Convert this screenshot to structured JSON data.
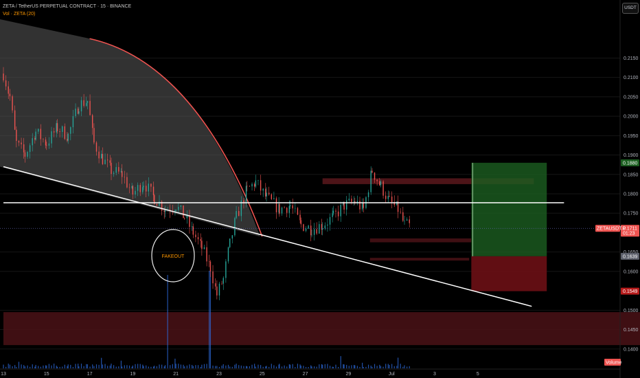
{
  "header": {
    "symbol_line": "ZETA / TetherUS PERPETUAL CONTRACT · 15 · BINANCE",
    "volume_line": "Vol · ZETA (20)"
  },
  "currency_button": "USDT",
  "annotation": "FAKEOUT",
  "colors": {
    "background": "#000000",
    "up_candle": "#26a69a",
    "down_candle": "#ef5350",
    "zone": "#4a1216",
    "target_zone": "#1b5e20",
    "stop_zone": "#6b0f15",
    "trend_line": "#ffffff",
    "arc": "#ef5350",
    "volume": "#2d6cdf"
  },
  "chart_data": {
    "type": "candlestick",
    "title": "ZETA / TetherUS PERPETUAL CONTRACT · 15 · BINANCE",
    "ylim": [
      0.135,
      0.225
    ],
    "y_ticks": [
      0.215,
      0.21,
      0.205,
      0.2,
      0.195,
      0.19,
      0.185,
      0.18,
      0.175,
      0.165,
      0.16,
      0.15,
      0.145,
      0.14
    ],
    "x_ticks": [
      "13",
      "15",
      "17",
      "19",
      "21",
      "23",
      "25",
      "27",
      "29",
      "Jul",
      "3",
      "5"
    ],
    "x_tick_days": [
      13,
      15,
      17,
      19,
      21,
      23,
      25,
      27,
      29,
      31,
      33,
      35
    ],
    "xlim_days": [
      13,
      41.6
    ],
    "price_path": [
      [
        13.0,
        0.211
      ],
      [
        13.3,
        0.205
      ],
      [
        13.6,
        0.193
      ],
      [
        14.0,
        0.19
      ],
      [
        14.5,
        0.196
      ],
      [
        15.0,
        0.193
      ],
      [
        15.5,
        0.197
      ],
      [
        16.0,
        0.195
      ],
      [
        16.5,
        0.203
      ],
      [
        16.9,
        0.204
      ],
      [
        17.2,
        0.193
      ],
      [
        17.6,
        0.189
      ],
      [
        18.0,
        0.186
      ],
      [
        18.5,
        0.185
      ],
      [
        19.0,
        0.18
      ],
      [
        19.5,
        0.183
      ],
      [
        20.0,
        0.179
      ],
      [
        20.5,
        0.176
      ],
      [
        21.0,
        0.177
      ],
      [
        21.4,
        0.174
      ],
      [
        21.8,
        0.17
      ],
      [
        22.2,
        0.166
      ],
      [
        22.6,
        0.161
      ],
      [
        22.9,
        0.154
      ],
      [
        23.2,
        0.158
      ],
      [
        23.5,
        0.167
      ],
      [
        23.8,
        0.174
      ],
      [
        24.3,
        0.181
      ],
      [
        24.7,
        0.183
      ],
      [
        25.2,
        0.179
      ],
      [
        25.8,
        0.176
      ],
      [
        26.3,
        0.177
      ],
      [
        26.8,
        0.172
      ],
      [
        27.3,
        0.171
      ],
      [
        27.8,
        0.172
      ],
      [
        28.3,
        0.174
      ],
      [
        28.8,
        0.177
      ],
      [
        29.3,
        0.178
      ],
      [
        29.7,
        0.176
      ],
      [
        30.1,
        0.186
      ],
      [
        30.5,
        0.182
      ],
      [
        30.9,
        0.178
      ],
      [
        31.3,
        0.176
      ],
      [
        31.6,
        0.172
      ],
      [
        31.9,
        0.1715
      ]
    ],
    "trend_lines": [
      {
        "from": [
          13.0,
          0.187
        ],
        "to": [
          37.5,
          0.151
        ],
        "color": "#ffffff"
      },
      {
        "from": [
          13.0,
          0.1777
        ],
        "to": [
          39.0,
          0.1777
        ],
        "color": "#ffffff"
      }
    ],
    "arc": {
      "from": [
        17.0,
        0.22
      ],
      "to": [
        25.0,
        0.169
      ],
      "color": "#ef5350"
    },
    "zones": [
      {
        "x": [
          13.0,
          43.0
        ],
        "y": [
          0.141,
          0.1495
        ],
        "color": "#4a1216"
      },
      {
        "x": [
          27.8,
          37.6
        ],
        "y": [
          0.1825,
          0.184
        ],
        "color": "#5a171c"
      },
      {
        "x": [
          30.0,
          34.7
        ],
        "y": [
          0.1675,
          0.1685
        ],
        "color": "#4a1216"
      },
      {
        "x": [
          30.0,
          34.6
        ],
        "y": [
          0.1628,
          0.1635
        ],
        "color": "#4a1216"
      }
    ],
    "position": {
      "x": [
        34.7,
        38.2
      ],
      "entry": 0.1639,
      "target": 0.188,
      "stop": 0.1549
    },
    "price_labels": [
      {
        "value": 0.188,
        "text": "0.1880",
        "color": "#1b5e20"
      },
      {
        "value": 0.1711,
        "text": "0.1711",
        "color": "#ef5350",
        "sub": "01:23"
      },
      {
        "value": 0.1639,
        "text": "0.1639",
        "color": "#5d606b"
      },
      {
        "value": 0.1549,
        "text": "0.1549",
        "color": "#b71c1c"
      }
    ],
    "symbol_tag": "ZETAUSDT.P",
    "volume_tag": "Volume"
  }
}
